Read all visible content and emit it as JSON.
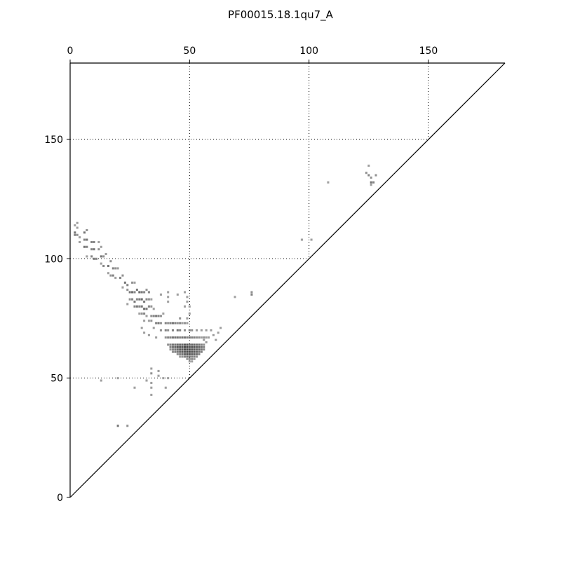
{
  "chart_data": {
    "type": "heatmap",
    "title": "PF00015.18.1qu7_A",
    "xlabel": "",
    "ylabel": "",
    "xlim": [
      0,
      182
    ],
    "ylim": [
      0,
      182
    ],
    "x_ticks": [
      0,
      50,
      100,
      150
    ],
    "y_ticks": [
      0,
      50,
      100,
      150
    ],
    "grid": "dotted",
    "region": "upper-left triangle",
    "colormap": {
      "low": "#c8c8c8",
      "high": "#404040"
    },
    "cells": [
      [
        2,
        114,
        0.3
      ],
      [
        3,
        115,
        0.3
      ],
      [
        3,
        113,
        0.3
      ],
      [
        2,
        111,
        0.6
      ],
      [
        2,
        110,
        0.5
      ],
      [
        3,
        110,
        0.4
      ],
      [
        4,
        109,
        0.3
      ],
      [
        6,
        111,
        0.6
      ],
      [
        7,
        112,
        0.4
      ],
      [
        6,
        108,
        0.5
      ],
      [
        7,
        108,
        0.6
      ],
      [
        9,
        107,
        0.5
      ],
      [
        10,
        107,
        0.5
      ],
      [
        12,
        107,
        0.3
      ],
      [
        4,
        107,
        0.3
      ],
      [
        6,
        105,
        0.6
      ],
      [
        7,
        105,
        0.5
      ],
      [
        9,
        104,
        0.5
      ],
      [
        10,
        104,
        0.6
      ],
      [
        12,
        104,
        0.4
      ],
      [
        13,
        105,
        0.3
      ],
      [
        7,
        101,
        0.3
      ],
      [
        9,
        101,
        0.5
      ],
      [
        10,
        100,
        0.6
      ],
      [
        11,
        100,
        0.5
      ],
      [
        13,
        101,
        0.6
      ],
      [
        14,
        101,
        0.4
      ],
      [
        15,
        102,
        0.3
      ],
      [
        13,
        98,
        0.3
      ],
      [
        14,
        97,
        0.5
      ],
      [
        16,
        97,
        0.6
      ],
      [
        18,
        96,
        0.5
      ],
      [
        19,
        96,
        0.4
      ],
      [
        20,
        96,
        0.3
      ],
      [
        17,
        99,
        0.4
      ],
      [
        16,
        94,
        0.3
      ],
      [
        17,
        93,
        0.4
      ],
      [
        18,
        93,
        0.5
      ],
      [
        19,
        92,
        0.3
      ],
      [
        21,
        92,
        0.5
      ],
      [
        22,
        93,
        0.4
      ],
      [
        23,
        90,
        0.6
      ],
      [
        24,
        89,
        0.5
      ],
      [
        26,
        90,
        0.4
      ],
      [
        27,
        90,
        0.3
      ],
      [
        22,
        88,
        0.3
      ],
      [
        24,
        87,
        0.4
      ],
      [
        25,
        86,
        0.6
      ],
      [
        26,
        86,
        0.7
      ],
      [
        27,
        86,
        0.5
      ],
      [
        28,
        87,
        0.6
      ],
      [
        29,
        86,
        0.7
      ],
      [
        30,
        86,
        0.6
      ],
      [
        31,
        86,
        0.5
      ],
      [
        32,
        87,
        0.4
      ],
      [
        33,
        86,
        0.5
      ],
      [
        25,
        83,
        0.4
      ],
      [
        26,
        83,
        0.5
      ],
      [
        27,
        82,
        0.6
      ],
      [
        28,
        83,
        0.5
      ],
      [
        29,
        83,
        0.6
      ],
      [
        30,
        83,
        0.7
      ],
      [
        31,
        82,
        0.6
      ],
      [
        32,
        83,
        0.5
      ],
      [
        33,
        83,
        0.4
      ],
      [
        34,
        83,
        0.3
      ],
      [
        24,
        81,
        0.3
      ],
      [
        27,
        80,
        0.5
      ],
      [
        28,
        80,
        0.6
      ],
      [
        29,
        80,
        0.5
      ],
      [
        30,
        80,
        0.6
      ],
      [
        31,
        79,
        0.7
      ],
      [
        32,
        79,
        0.6
      ],
      [
        33,
        80,
        0.5
      ],
      [
        34,
        80,
        0.4
      ],
      [
        35,
        79,
        0.3
      ],
      [
        29,
        77,
        0.3
      ],
      [
        30,
        77,
        0.4
      ],
      [
        31,
        77,
        0.5
      ],
      [
        32,
        76,
        0.3
      ],
      [
        34,
        76,
        0.4
      ],
      [
        35,
        76,
        0.5
      ],
      [
        36,
        76,
        0.6
      ],
      [
        37,
        76,
        0.5
      ],
      [
        38,
        76,
        0.4
      ],
      [
        39,
        77,
        0.3
      ],
      [
        33,
        74,
        0.3
      ],
      [
        34,
        74,
        0.4
      ],
      [
        36,
        73,
        0.5
      ],
      [
        37,
        73,
        0.6
      ],
      [
        38,
        73,
        0.4
      ],
      [
        40,
        73,
        0.5
      ],
      [
        41,
        73,
        0.4
      ],
      [
        42,
        73,
        0.5
      ],
      [
        43,
        73,
        0.6
      ],
      [
        44,
        73,
        0.5
      ],
      [
        45,
        73,
        0.4
      ],
      [
        46,
        73,
        0.5
      ],
      [
        47,
        73,
        0.3
      ],
      [
        48,
        73,
        0.4
      ],
      [
        49,
        73,
        0.3
      ],
      [
        35,
        71,
        0.3
      ],
      [
        38,
        70,
        0.4
      ],
      [
        40,
        70,
        0.5
      ],
      [
        41,
        70,
        0.4
      ],
      [
        43,
        70,
        0.5
      ],
      [
        45,
        70,
        0.6
      ],
      [
        46,
        70,
        0.5
      ],
      [
        48,
        70,
        0.4
      ],
      [
        50,
        70,
        0.5
      ],
      [
        51,
        70,
        0.4
      ],
      [
        53,
        70,
        0.3
      ],
      [
        55,
        70,
        0.3
      ],
      [
        57,
        70,
        0.3
      ],
      [
        59,
        70,
        0.3
      ],
      [
        36,
        67,
        0.3
      ],
      [
        40,
        67,
        0.4
      ],
      [
        41,
        67,
        0.5
      ],
      [
        42,
        67,
        0.5
      ],
      [
        43,
        67,
        0.6
      ],
      [
        44,
        67,
        0.6
      ],
      [
        45,
        67,
        0.6
      ],
      [
        46,
        67,
        0.5
      ],
      [
        47,
        67,
        0.6
      ],
      [
        48,
        67,
        0.6
      ],
      [
        49,
        67,
        0.5
      ],
      [
        50,
        67,
        0.6
      ],
      [
        51,
        67,
        0.5
      ],
      [
        52,
        67,
        0.5
      ],
      [
        53,
        67,
        0.4
      ],
      [
        54,
        67,
        0.4
      ],
      [
        55,
        67,
        0.3
      ],
      [
        56,
        67,
        0.4
      ],
      [
        57,
        67,
        0.3
      ],
      [
        58,
        67,
        0.3
      ],
      [
        33,
        68,
        0.3
      ],
      [
        31,
        69,
        0.3
      ],
      [
        30,
        71,
        0.3
      ],
      [
        31,
        74,
        0.3
      ],
      [
        41,
        64,
        0.4
      ],
      [
        42,
        64,
        0.5
      ],
      [
        43,
        64,
        0.6
      ],
      [
        44,
        64,
        0.6
      ],
      [
        45,
        64,
        0.7
      ],
      [
        46,
        64,
        0.7
      ],
      [
        47,
        64,
        0.7
      ],
      [
        48,
        64,
        0.8
      ],
      [
        49,
        64,
        0.8
      ],
      [
        50,
        64,
        0.7
      ],
      [
        51,
        64,
        0.7
      ],
      [
        52,
        64,
        0.7
      ],
      [
        53,
        64,
        0.6
      ],
      [
        54,
        64,
        0.6
      ],
      [
        55,
        64,
        0.5
      ],
      [
        56,
        64,
        0.4
      ],
      [
        42,
        63,
        0.5
      ],
      [
        43,
        63,
        0.6
      ],
      [
        44,
        63,
        0.7
      ],
      [
        45,
        63,
        0.8
      ],
      [
        46,
        63,
        0.8
      ],
      [
        47,
        63,
        0.8
      ],
      [
        48,
        63,
        0.9
      ],
      [
        49,
        63,
        0.9
      ],
      [
        50,
        63,
        0.8
      ],
      [
        51,
        63,
        0.8
      ],
      [
        52,
        63,
        0.8
      ],
      [
        53,
        63,
        0.7
      ],
      [
        54,
        63,
        0.7
      ],
      [
        55,
        63,
        0.6
      ],
      [
        56,
        63,
        0.5
      ],
      [
        42,
        62,
        0.4
      ],
      [
        43,
        62,
        0.5
      ],
      [
        44,
        62,
        0.6
      ],
      [
        45,
        62,
        0.7
      ],
      [
        46,
        62,
        0.8
      ],
      [
        47,
        62,
        0.8
      ],
      [
        48,
        62,
        0.9
      ],
      [
        49,
        62,
        0.9
      ],
      [
        50,
        62,
        0.9
      ],
      [
        51,
        62,
        0.8
      ],
      [
        52,
        62,
        0.8
      ],
      [
        53,
        62,
        0.7
      ],
      [
        54,
        62,
        0.7
      ],
      [
        55,
        62,
        0.6
      ],
      [
        56,
        62,
        0.5
      ],
      [
        43,
        61,
        0.4
      ],
      [
        44,
        61,
        0.5
      ],
      [
        45,
        61,
        0.6
      ],
      [
        46,
        61,
        0.7
      ],
      [
        47,
        61,
        0.8
      ],
      [
        48,
        61,
        0.8
      ],
      [
        49,
        61,
        0.9
      ],
      [
        50,
        61,
        0.9
      ],
      [
        51,
        61,
        0.8
      ],
      [
        52,
        61,
        0.8
      ],
      [
        53,
        61,
        0.7
      ],
      [
        54,
        61,
        0.6
      ],
      [
        55,
        61,
        0.5
      ],
      [
        45,
        60,
        0.4
      ],
      [
        46,
        60,
        0.5
      ],
      [
        47,
        60,
        0.6
      ],
      [
        48,
        60,
        0.7
      ],
      [
        49,
        60,
        0.8
      ],
      [
        50,
        60,
        0.8
      ],
      [
        51,
        60,
        0.7
      ],
      [
        52,
        60,
        0.7
      ],
      [
        53,
        60,
        0.6
      ],
      [
        54,
        60,
        0.5
      ],
      [
        46,
        59,
        0.3
      ],
      [
        47,
        59,
        0.4
      ],
      [
        48,
        59,
        0.5
      ],
      [
        49,
        59,
        0.6
      ],
      [
        50,
        59,
        0.6
      ],
      [
        51,
        59,
        0.5
      ],
      [
        52,
        59,
        0.5
      ],
      [
        53,
        59,
        0.4
      ],
      [
        49,
        58,
        0.3
      ],
      [
        50,
        58,
        0.4
      ],
      [
        51,
        58,
        0.4
      ],
      [
        52,
        58,
        0.3
      ],
      [
        50,
        57,
        0.3
      ],
      [
        51,
        57,
        0.3
      ],
      [
        57,
        65,
        0.3
      ],
      [
        56,
        66,
        0.3
      ],
      [
        61,
        66,
        0.3
      ],
      [
        60,
        68,
        0.3
      ],
      [
        62,
        69,
        0.3
      ],
      [
        63,
        71,
        0.3
      ],
      [
        38,
        85,
        0.3
      ],
      [
        41,
        86,
        0.3
      ],
      [
        41,
        84,
        0.3
      ],
      [
        41,
        82,
        0.3
      ],
      [
        45,
        85,
        0.3
      ],
      [
        48,
        86,
        0.3
      ],
      [
        49,
        84,
        0.3
      ],
      [
        49,
        82,
        0.3
      ],
      [
        50,
        80,
        0.3
      ],
      [
        48,
        80,
        0.3
      ],
      [
        50,
        77,
        0.3
      ],
      [
        46,
        75,
        0.4
      ],
      [
        49,
        75,
        0.3
      ],
      [
        69,
        84,
        0.3
      ],
      [
        76,
        86,
        0.4
      ],
      [
        76,
        85,
        0.5
      ],
      [
        34,
        54,
        0.3
      ],
      [
        34,
        52,
        0.4
      ],
      [
        37,
        53,
        0.3
      ],
      [
        37,
        51,
        0.3
      ],
      [
        39,
        50,
        0.3
      ],
      [
        41,
        50,
        0.3
      ],
      [
        34,
        48,
        0.3
      ],
      [
        34,
        46,
        0.3
      ],
      [
        34,
        43,
        0.3
      ],
      [
        40,
        46,
        0.3
      ],
      [
        32,
        49,
        0.3
      ],
      [
        13,
        49,
        0.3
      ],
      [
        20,
        50,
        0.3
      ],
      [
        27,
        46,
        0.3
      ],
      [
        20,
        30,
        0.6
      ],
      [
        24,
        30,
        0.4
      ],
      [
        97,
        108,
        0.3
      ],
      [
        101,
        108,
        0.3
      ],
      [
        108,
        132,
        0.3
      ],
      [
        125,
        139,
        0.3
      ],
      [
        124,
        136,
        0.4
      ],
      [
        125,
        135,
        0.5
      ],
      [
        126,
        134,
        0.4
      ],
      [
        126,
        132,
        0.6
      ],
      [
        127,
        132,
        0.5
      ],
      [
        128,
        135,
        0.4
      ],
      [
        126,
        131,
        0.3
      ]
    ]
  }
}
